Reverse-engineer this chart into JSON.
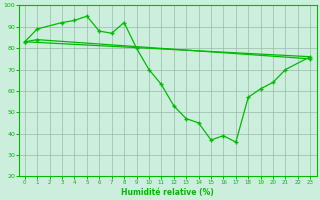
{
  "line1_points": [
    [
      0,
      83
    ],
    [
      1,
      84
    ],
    [
      23,
      75
    ]
  ],
  "line2_points": [
    [
      0,
      83
    ],
    [
      23,
      76
    ]
  ],
  "line3_points": [
    [
      0,
      83
    ],
    [
      1,
      89
    ],
    [
      3,
      92
    ],
    [
      4,
      93
    ],
    [
      5,
      95
    ],
    [
      6,
      88
    ],
    [
      7,
      87
    ],
    [
      8,
      92
    ],
    [
      9,
      80
    ],
    [
      10,
      70
    ],
    [
      11,
      63
    ],
    [
      12,
      53
    ],
    [
      13,
      47
    ],
    [
      14,
      45
    ],
    [
      15,
      37
    ],
    [
      16,
      39
    ],
    [
      17,
      36
    ],
    [
      18,
      57
    ],
    [
      19,
      61
    ],
    [
      20,
      64
    ],
    [
      21,
      70
    ],
    [
      23,
      76
    ]
  ],
  "xlabel": "Humidité relative (%)",
  "ylim": [
    20,
    100
  ],
  "xlim": [
    0,
    23
  ],
  "yticks": [
    20,
    30,
    40,
    50,
    60,
    70,
    80,
    90,
    100
  ],
  "xticks": [
    0,
    1,
    2,
    3,
    4,
    5,
    6,
    7,
    8,
    9,
    10,
    11,
    12,
    13,
    14,
    15,
    16,
    17,
    18,
    19,
    20,
    21,
    22,
    23
  ],
  "line_color": "#00bb00",
  "bg_color": "#cceedd",
  "grid_color": "#99bbaa"
}
